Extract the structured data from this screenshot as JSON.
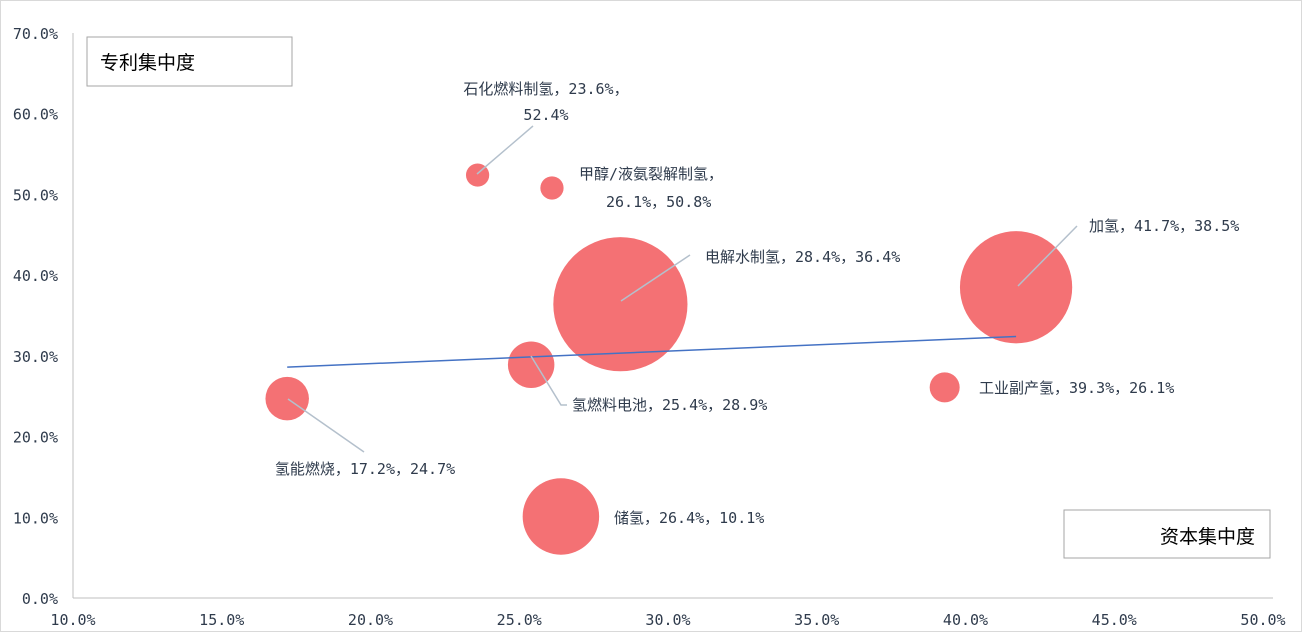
{
  "chart_data": {
    "type": "scatter",
    "subtype": "bubble",
    "title": "",
    "xlabel": "资本集中度",
    "ylabel": "专利集中度",
    "xlim": [
      0.1,
      0.5
    ],
    "ylim": [
      0.0,
      0.7
    ],
    "x_ticks": [
      "10.0%",
      "15.0%",
      "20.0%",
      "25.0%",
      "30.0%",
      "35.0%",
      "40.0%",
      "45.0%",
      "50.0%"
    ],
    "y_ticks": [
      "0.0%",
      "10.0%",
      "20.0%",
      "30.0%",
      "40.0%",
      "50.0%",
      "60.0%",
      "70.0%"
    ],
    "bubble_color": "#f47174",
    "trendline_color": "#4472c4",
    "leader_color": "#b4c0cc",
    "grid": false,
    "points": [
      {
        "name": "石化燃料制氢",
        "x": 0.236,
        "y": 0.524,
        "size": 0.6,
        "label_lines": [
          "石化燃料制氢，23.6%，",
          "52.4%"
        ]
      },
      {
        "name": "甲醇/液氨裂解制氢",
        "x": 0.261,
        "y": 0.508,
        "size": 0.6,
        "label_lines": [
          "甲醇/液氨裂解制氢，",
          "26.1%，50.8%"
        ]
      },
      {
        "name": "电解水制氢",
        "x": 0.284,
        "y": 0.364,
        "size": 20,
        "label_lines": [
          "电解水制氢，28.4%，36.4%"
        ]
      },
      {
        "name": "加氢",
        "x": 0.417,
        "y": 0.385,
        "size": 14,
        "label_lines": [
          "加氢，41.7%，38.5%"
        ]
      },
      {
        "name": "氢燃料电池",
        "x": 0.254,
        "y": 0.289,
        "size": 2.4,
        "label_lines": [
          "氢燃料电池，25.4%，28.9%"
        ]
      },
      {
        "name": "工业副产氢",
        "x": 0.393,
        "y": 0.261,
        "size": 1.0,
        "label_lines": [
          "工业副产氢，39.3%，26.1%"
        ]
      },
      {
        "name": "氢能燃烧",
        "x": 0.172,
        "y": 0.247,
        "size": 2.1,
        "label_lines": [
          "氢能燃烧，17.2%，24.7%"
        ]
      },
      {
        "name": "储氢",
        "x": 0.264,
        "y": 0.101,
        "size": 6.5,
        "label_lines": [
          "储氢，26.4%，10.1%"
        ]
      }
    ],
    "trendline": {
      "x": [
        0.172,
        0.417
      ],
      "y": [
        0.286,
        0.324
      ]
    }
  }
}
